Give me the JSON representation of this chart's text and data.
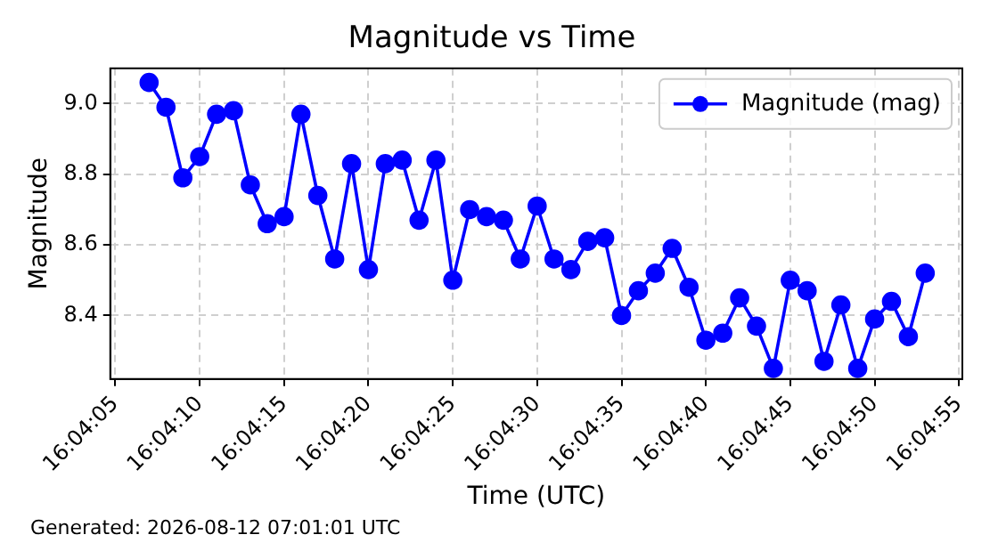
{
  "chart_data": {
    "type": "line",
    "title": "Magnitude vs Time",
    "xlabel": "Time (UTC)",
    "ylabel": "Magnitude",
    "annotations": [
      "Generated: 2026-08-12 07:01:01 UTC"
    ],
    "x": [
      "2026-08-12T16:04:07",
      "2026-08-12T16:04:08",
      "2026-08-12T16:04:09",
      "2026-08-12T16:04:10",
      "2026-08-12T16:04:11",
      "2026-08-12T16:04:12",
      "2026-08-12T16:04:13",
      "2026-08-12T16:04:14",
      "2026-08-12T16:04:15",
      "2026-08-12T16:04:16",
      "2026-08-12T16:04:17",
      "2026-08-12T16:04:18",
      "2026-08-12T16:04:19",
      "2026-08-12T16:04:20",
      "2026-08-12T16:04:21",
      "2026-08-12T16:04:22",
      "2026-08-12T16:04:23",
      "2026-08-12T16:04:24",
      "2026-08-12T16:04:25",
      "2026-08-12T16:04:26",
      "2026-08-12T16:04:27",
      "2026-08-12T16:04:28",
      "2026-08-12T16:04:29",
      "2026-08-12T16:04:30",
      "2026-08-12T16:04:31",
      "2026-08-12T16:04:32",
      "2026-08-12T16:04:33",
      "2026-08-12T16:04:34",
      "2026-08-12T16:04:35",
      "2026-08-12T16:04:36",
      "2026-08-12T16:04:37",
      "2026-08-12T16:04:38",
      "2026-08-12T16:04:39",
      "2026-08-12T16:04:40",
      "2026-08-12T16:04:41",
      "2026-08-12T16:04:42",
      "2026-08-12T16:04:43",
      "2026-08-12T16:04:44",
      "2026-08-12T16:04:45",
      "2026-08-12T16:04:46",
      "2026-08-12T16:04:47",
      "2026-08-12T16:04:48",
      "2026-08-12T16:04:49",
      "2026-08-12T16:04:50",
      "2026-08-12T16:04:51",
      "2026-08-12T16:04:52",
      "2026-08-12T16:04:53"
    ],
    "series": [
      {
        "name": "Magnitude (mag)",
        "color": "#0000ff",
        "values": [
          9.06,
          8.99,
          8.79,
          8.85,
          8.97,
          8.98,
          8.77,
          8.66,
          8.68,
          8.97,
          8.74,
          8.56,
          8.83,
          8.53,
          8.83,
          8.84,
          8.67,
          8.84,
          8.5,
          8.7,
          8.68,
          8.67,
          8.56,
          8.71,
          8.56,
          8.53,
          8.61,
          8.62,
          8.4,
          8.47,
          8.52,
          8.59,
          8.48,
          8.33,
          8.35,
          8.45,
          8.37,
          8.25,
          8.5,
          8.47,
          8.27,
          8.43,
          8.25,
          8.39,
          8.44,
          8.34,
          8.52
        ]
      }
    ],
    "xlim": [
      "2026-08-12T16:04:04.7",
      "2026-08-12T16:04:55.2"
    ],
    "xticks": [
      {
        "value": "2026-08-12T16:04:05",
        "label": "16:04:05"
      },
      {
        "value": "2026-08-12T16:04:10",
        "label": "16:04:10"
      },
      {
        "value": "2026-08-12T16:04:15",
        "label": "16:04:15"
      },
      {
        "value": "2026-08-12T16:04:20",
        "label": "16:04:20"
      },
      {
        "value": "2026-08-12T16:04:25",
        "label": "16:04:25"
      },
      {
        "value": "2026-08-12T16:04:30",
        "label": "16:04:30"
      },
      {
        "value": "2026-08-12T16:04:35",
        "label": "16:04:35"
      },
      {
        "value": "2026-08-12T16:04:40",
        "label": "16:04:40"
      },
      {
        "value": "2026-08-12T16:04:45",
        "label": "16:04:45"
      },
      {
        "value": "2026-08-12T16:04:50",
        "label": "16:04:50"
      },
      {
        "value": "2026-08-12T16:04:55",
        "label": "16:04:55"
      }
    ],
    "ylim": [
      8.22,
      9.1
    ],
    "yticks": [
      {
        "value": 8.4,
        "label": "8.4"
      },
      {
        "value": 8.6,
        "label": "8.6"
      },
      {
        "value": 8.8,
        "label": "8.8"
      },
      {
        "value": 9.0,
        "label": "9.0"
      }
    ],
    "grid": true,
    "legend": "top right",
    "marker": "circle",
    "line_style": "solid"
  }
}
